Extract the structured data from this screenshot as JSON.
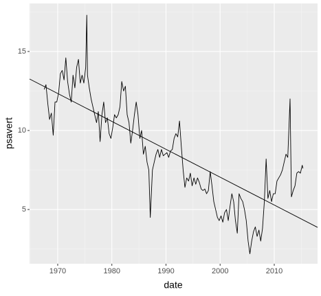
{
  "chart_data": {
    "type": "line",
    "x_label": "date",
    "y_label": "psavert",
    "xlim": [
      1964.8,
      2018.0
    ],
    "ylim": [
      1.57,
      18.04
    ],
    "xticks": [
      1970,
      1980,
      1990,
      2000,
      2010
    ],
    "yticks": [
      5,
      10,
      15
    ],
    "grid": true,
    "series": [
      {
        "color": "#000000",
        "x": [
          1967.5,
          1967.83,
          1968.17,
          1968.5,
          1968.83,
          1969.17,
          1969.5,
          1969.83,
          1970.17,
          1970.5,
          1970.83,
          1971.17,
          1971.5,
          1971.83,
          1972.17,
          1972.5,
          1972.83,
          1973.17,
          1973.5,
          1973.83,
          1974.17,
          1974.5,
          1974.83,
          1975.17,
          1975.37,
          1975.5,
          1975.83,
          1976.17,
          1976.5,
          1976.83,
          1977.17,
          1977.5,
          1977.83,
          1978.17,
          1978.5,
          1978.83,
          1979.17,
          1979.5,
          1979.83,
          1980.17,
          1980.5,
          1980.83,
          1981.17,
          1981.5,
          1981.83,
          1982.17,
          1982.5,
          1982.83,
          1983.17,
          1983.5,
          1983.83,
          1984.17,
          1984.5,
          1984.83,
          1985.17,
          1985.5,
          1985.83,
          1986.17,
          1986.5,
          1986.83,
          1987.1,
          1987.5,
          1987.83,
          1988.17,
          1988.5,
          1988.83,
          1989.17,
          1989.5,
          1989.83,
          1990.17,
          1990.5,
          1990.83,
          1991.17,
          1991.5,
          1991.83,
          1992.17,
          1992.5,
          1992.83,
          1993.17,
          1993.5,
          1993.83,
          1994.17,
          1994.5,
          1994.83,
          1995.17,
          1995.5,
          1995.83,
          1996.17,
          1996.5,
          1996.83,
          1997.17,
          1997.5,
          1997.83,
          1998.17,
          1998.5,
          1998.83,
          1999.17,
          1999.5,
          1999.83,
          2000.17,
          2000.5,
          2000.83,
          2001.17,
          2001.5,
          2001.83,
          2002.17,
          2002.5,
          2002.83,
          2003.17,
          2003.5,
          2003.83,
          2004.17,
          2004.5,
          2004.83,
          2005.17,
          2005.5,
          2005.83,
          2006.17,
          2006.5,
          2006.83,
          2007.17,
          2007.5,
          2007.83,
          2008.17,
          2008.5,
          2008.83,
          2009.17,
          2009.5,
          2009.83,
          2010.17,
          2010.5,
          2010.83,
          2011.17,
          2011.5,
          2011.83,
          2012.17,
          2012.5,
          2012.92,
          2013.17,
          2013.5,
          2013.83,
          2014.17,
          2014.5,
          2014.83,
          2015.17,
          2015.3
        ],
        "values": [
          12.6,
          12.9,
          11.7,
          10.7,
          11.1,
          9.7,
          11.8,
          11.8,
          12.4,
          13.6,
          13.8,
          13.2,
          14.6,
          13.1,
          12.3,
          11.8,
          13.5,
          12.7,
          14.0,
          14.5,
          13.0,
          13.5,
          13.0,
          14.0,
          17.3,
          13.5,
          12.7,
          12.0,
          11.5,
          11.0,
          10.5,
          11.2,
          9.3,
          11.0,
          11.8,
          10.5,
          10.8,
          9.8,
          9.5,
          10.2,
          11.0,
          10.8,
          11.0,
          11.5,
          13.1,
          12.5,
          12.8,
          11.0,
          10.5,
          9.2,
          10.0,
          11.0,
          11.8,
          11.0,
          9.5,
          10.0,
          8.5,
          9.0,
          8.0,
          7.5,
          4.5,
          7.5,
          8.0,
          8.5,
          8.8,
          8.3,
          8.8,
          8.4,
          8.5,
          8.6,
          8.3,
          8.7,
          8.8,
          9.5,
          9.8,
          9.6,
          10.6,
          9.0,
          7.5,
          6.4,
          7.0,
          6.8,
          7.3,
          6.5,
          7.0,
          6.6,
          7.0,
          6.7,
          6.3,
          6.2,
          6.3,
          6.0,
          6.2,
          7.4,
          6.5,
          5.5,
          5.0,
          4.5,
          4.3,
          4.6,
          4.2,
          4.8,
          5.0,
          4.3,
          5.2,
          6.0,
          5.5,
          4.3,
          3.5,
          6.0,
          5.7,
          5.5,
          5.0,
          4.3,
          3.0,
          2.2,
          3.0,
          3.6,
          3.9,
          3.3,
          3.7,
          3.0,
          3.8,
          5.5,
          8.2,
          5.7,
          6.2,
          5.5,
          6.0,
          6.0,
          6.8,
          7.0,
          7.2,
          7.5,
          8.0,
          8.5,
          8.3,
          12.0,
          5.8,
          6.2,
          6.5,
          7.3,
          7.4,
          7.3,
          7.8,
          7.6
        ]
      }
    ],
    "trend": {
      "color": "#000000",
      "x": [
        1964.8,
        2018.0
      ],
      "values": [
        13.26,
        3.87
      ]
    }
  }
}
